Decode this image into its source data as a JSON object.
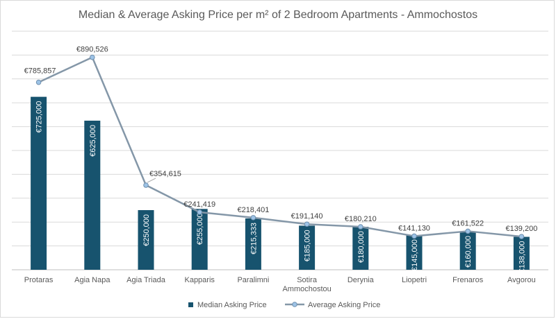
{
  "chart_data": {
    "type": "bar",
    "title": "Median & Average Asking Price per m² of 2 Bedroom Apartments - Ammochostos",
    "categories": [
      [
        "Protaras"
      ],
      [
        "Agia Napa"
      ],
      [
        "Agia Triada"
      ],
      [
        "Kapparis"
      ],
      [
        "Paralimni"
      ],
      [
        "Sotira",
        "Ammochostou"
      ],
      [
        "Derynia"
      ],
      [
        "Liopetri"
      ],
      [
        "Frenaros"
      ],
      [
        "Avgorou"
      ]
    ],
    "series": [
      {
        "name": "Median Asking Price",
        "type": "bar",
        "color": "#17536e",
        "values": [
          725000,
          625000,
          250000,
          255000,
          215333,
          185000,
          180000,
          145000,
          160000,
          138000
        ],
        "labels": [
          "€725,000",
          "€625,000",
          "€250,000",
          "€255,000",
          "€215,333",
          "€185,000",
          "€180,000",
          "€145,000",
          "€160,000",
          "€138,000"
        ]
      },
      {
        "name": "Average Asking Price",
        "type": "line",
        "color": "#8497a8",
        "marker_color": "#9dc3e6",
        "values": [
          785857,
          890526,
          354615,
          241419,
          218401,
          191140,
          180210,
          141130,
          161522,
          139200
        ],
        "labels": [
          "€785,857",
          "€890,526",
          "€354,615",
          "€241,419",
          "€218,401",
          "€191,140",
          "€180,210",
          "€141,130",
          "€161,522",
          "€139,200"
        ]
      }
    ],
    "ylim": [
      0,
      1000000
    ],
    "ytick_step": 100000,
    "grid": true,
    "legend": "bottom"
  }
}
